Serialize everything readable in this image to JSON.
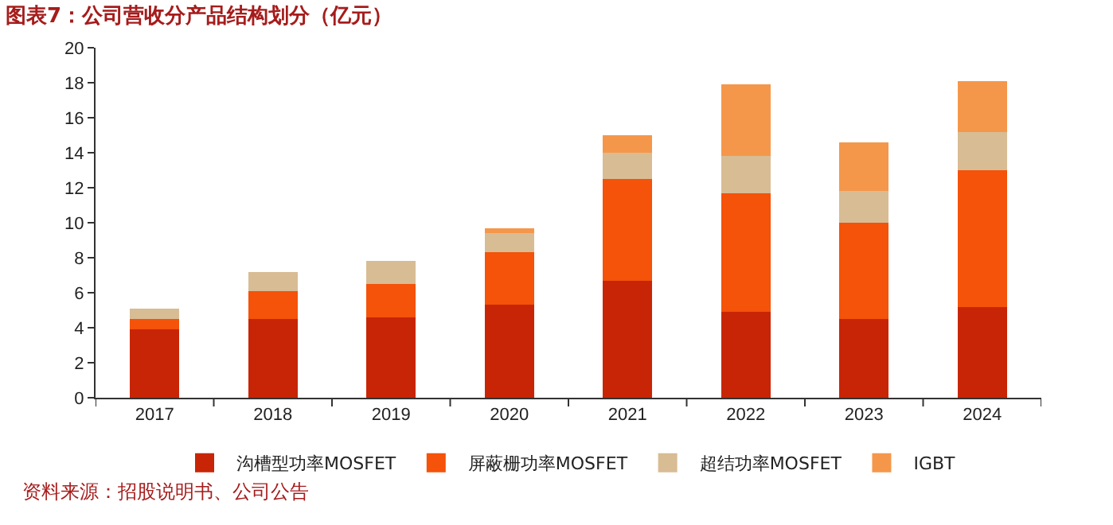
{
  "chart_data": {
    "type": "bar",
    "stacked": true,
    "title": "图表7：公司营收分产品结构划分（亿元）",
    "categories": [
      "2017",
      "2018",
      "2019",
      "2020",
      "2021",
      "2022",
      "2023",
      "2024"
    ],
    "series": [
      {
        "name": "沟槽型功率MOSFET",
        "color": "#c82506",
        "values": [
          3.9,
          4.5,
          4.6,
          5.3,
          6.7,
          4.9,
          4.5,
          5.2
        ]
      },
      {
        "name": "屏蔽栅功率MOSFET",
        "color": "#f5520a",
        "values": [
          0.6,
          1.6,
          1.9,
          3.0,
          5.8,
          6.8,
          5.5,
          7.8
        ]
      },
      {
        "name": "超结功率MOSFET",
        "color": "#d8bc94",
        "values": [
          0.6,
          1.1,
          1.3,
          1.1,
          1.5,
          2.1,
          1.8,
          2.2
        ]
      },
      {
        "name": "IGBT",
        "color": "#f5974a",
        "values": [
          0,
          0,
          0,
          0.3,
          1.0,
          4.1,
          2.8,
          2.9
        ]
      }
    ],
    "ylim": [
      0,
      20
    ],
    "yticks": [
      0,
      2,
      4,
      6,
      8,
      10,
      12,
      14,
      16,
      18,
      20
    ],
    "legend": "bottom",
    "annotations": [
      "资料来源：招股说明书、公司公告"
    ]
  }
}
